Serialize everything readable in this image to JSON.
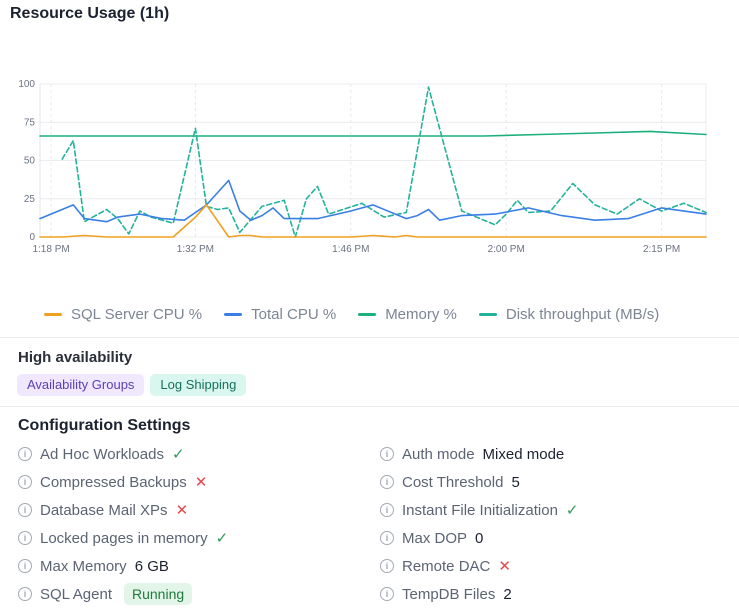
{
  "panel": {
    "title": "Resource Usage (1h)"
  },
  "chart_data": {
    "type": "line",
    "title": "Resource Usage (1h)",
    "x": [
      0,
      1,
      2,
      3,
      4,
      5,
      6,
      7,
      8,
      9,
      10,
      11,
      12,
      13,
      14,
      15,
      16,
      17,
      18,
      19,
      20,
      21,
      22,
      23,
      24,
      25,
      26,
      27,
      28,
      29,
      30,
      31,
      32,
      33,
      34,
      35,
      36,
      37,
      38,
      39,
      40,
      41,
      42,
      43,
      44,
      45,
      46,
      47,
      48,
      49,
      50,
      51,
      52,
      53,
      54,
      55,
      57,
      60
    ],
    "x_tick_labels": [
      "1:18 PM",
      "1:32 PM",
      "1:46 PM",
      "2:00 PM",
      "2:15 PM"
    ],
    "x_tick_positions": [
      1,
      14,
      28,
      42,
      56
    ],
    "ylim": [
      0,
      100
    ],
    "y_ticks": [
      0,
      25,
      50,
      75,
      100
    ],
    "grid": true,
    "legend_position": "bottom",
    "series": [
      {
        "name": "SQL Server CPU %",
        "color": "#f0a020",
        "dashed": false,
        "x": [
          0,
          2,
          4,
          6,
          8,
          10,
          12,
          14,
          15,
          17,
          18,
          19,
          20,
          22,
          25,
          28,
          30,
          32,
          33,
          34,
          35,
          36,
          37,
          40,
          44,
          48,
          52,
          56,
          60
        ],
        "values": [
          0,
          0,
          1,
          0,
          0,
          0,
          0,
          13,
          21,
          0,
          1,
          1,
          0,
          0,
          0,
          0,
          1,
          0,
          1,
          0,
          0,
          0,
          0,
          0,
          0,
          0,
          0,
          0,
          0
        ]
      },
      {
        "name": "Total CPU %",
        "color": "#3a7fe6",
        "dashed": false,
        "x": [
          0,
          3,
          4,
          6,
          7,
          9,
          11,
          13,
          15,
          17,
          18,
          19,
          20,
          21,
          22,
          24,
          25,
          28,
          30,
          33,
          34,
          35,
          36,
          38,
          41,
          44,
          47,
          50,
          53,
          56,
          60
        ],
        "values": [
          12,
          21,
          12,
          10,
          13,
          15,
          12,
          11,
          21,
          37,
          17,
          11,
          14,
          19,
          12,
          12,
          12,
          17,
          21,
          12,
          14,
          18,
          11,
          14,
          15,
          19,
          14,
          11,
          12,
          19,
          15
        ]
      },
      {
        "name": "Memory %",
        "color": "#1cb07a",
        "dashed": false,
        "x": [
          0,
          10,
          20,
          30,
          40,
          45,
          50,
          55,
          60
        ],
        "values": [
          66,
          66,
          66,
          66,
          66,
          67,
          68,
          69,
          67
        ]
      },
      {
        "name": "Disk throughput (MB/s)",
        "color": "#22b39a",
        "dashed": true,
        "x": [
          2,
          3,
          4,
          6,
          7,
          8,
          9,
          10,
          12,
          14,
          15,
          16,
          17,
          18,
          20,
          22,
          23,
          24,
          25,
          26,
          29,
          31,
          33,
          35,
          38,
          41,
          42,
          43,
          44,
          46,
          48,
          50,
          52,
          54,
          56,
          58,
          60
        ],
        "values": [
          51,
          63,
          10,
          18,
          12,
          2,
          17,
          13,
          9,
          71,
          20,
          18,
          19,
          3,
          20,
          24,
          0,
          25,
          33,
          15,
          22,
          13,
          16,
          98,
          17,
          8,
          15,
          24,
          16,
          17,
          35,
          21,
          15,
          25,
          17,
          22,
          16
        ]
      }
    ]
  },
  "high_availability": {
    "title": "High availability",
    "badges": [
      "Availability Groups",
      "Log Shipping"
    ]
  },
  "config": {
    "title": "Configuration Settings",
    "left": [
      {
        "label": "Ad Hoc Workloads",
        "status": "✓"
      },
      {
        "label": "Compressed Backups",
        "status": "✕"
      },
      {
        "label": "Database Mail XPs",
        "status": "✕"
      },
      {
        "label": "Locked pages in memory",
        "status": "✓"
      },
      {
        "label": "Max Memory",
        "value": "6 GB"
      },
      {
        "label": "SQL Agent",
        "pill": "Running"
      }
    ],
    "right": [
      {
        "label": "Auth mode",
        "value": "Mixed mode"
      },
      {
        "label": "Cost Threshold",
        "value": "5"
      },
      {
        "label": "Instant File Initialization",
        "status": "✓"
      },
      {
        "label": "Max DOP",
        "value": "0"
      },
      {
        "label": "Remote DAC",
        "status": "✕"
      },
      {
        "label": "TempDB Files",
        "value": "2"
      }
    ]
  }
}
